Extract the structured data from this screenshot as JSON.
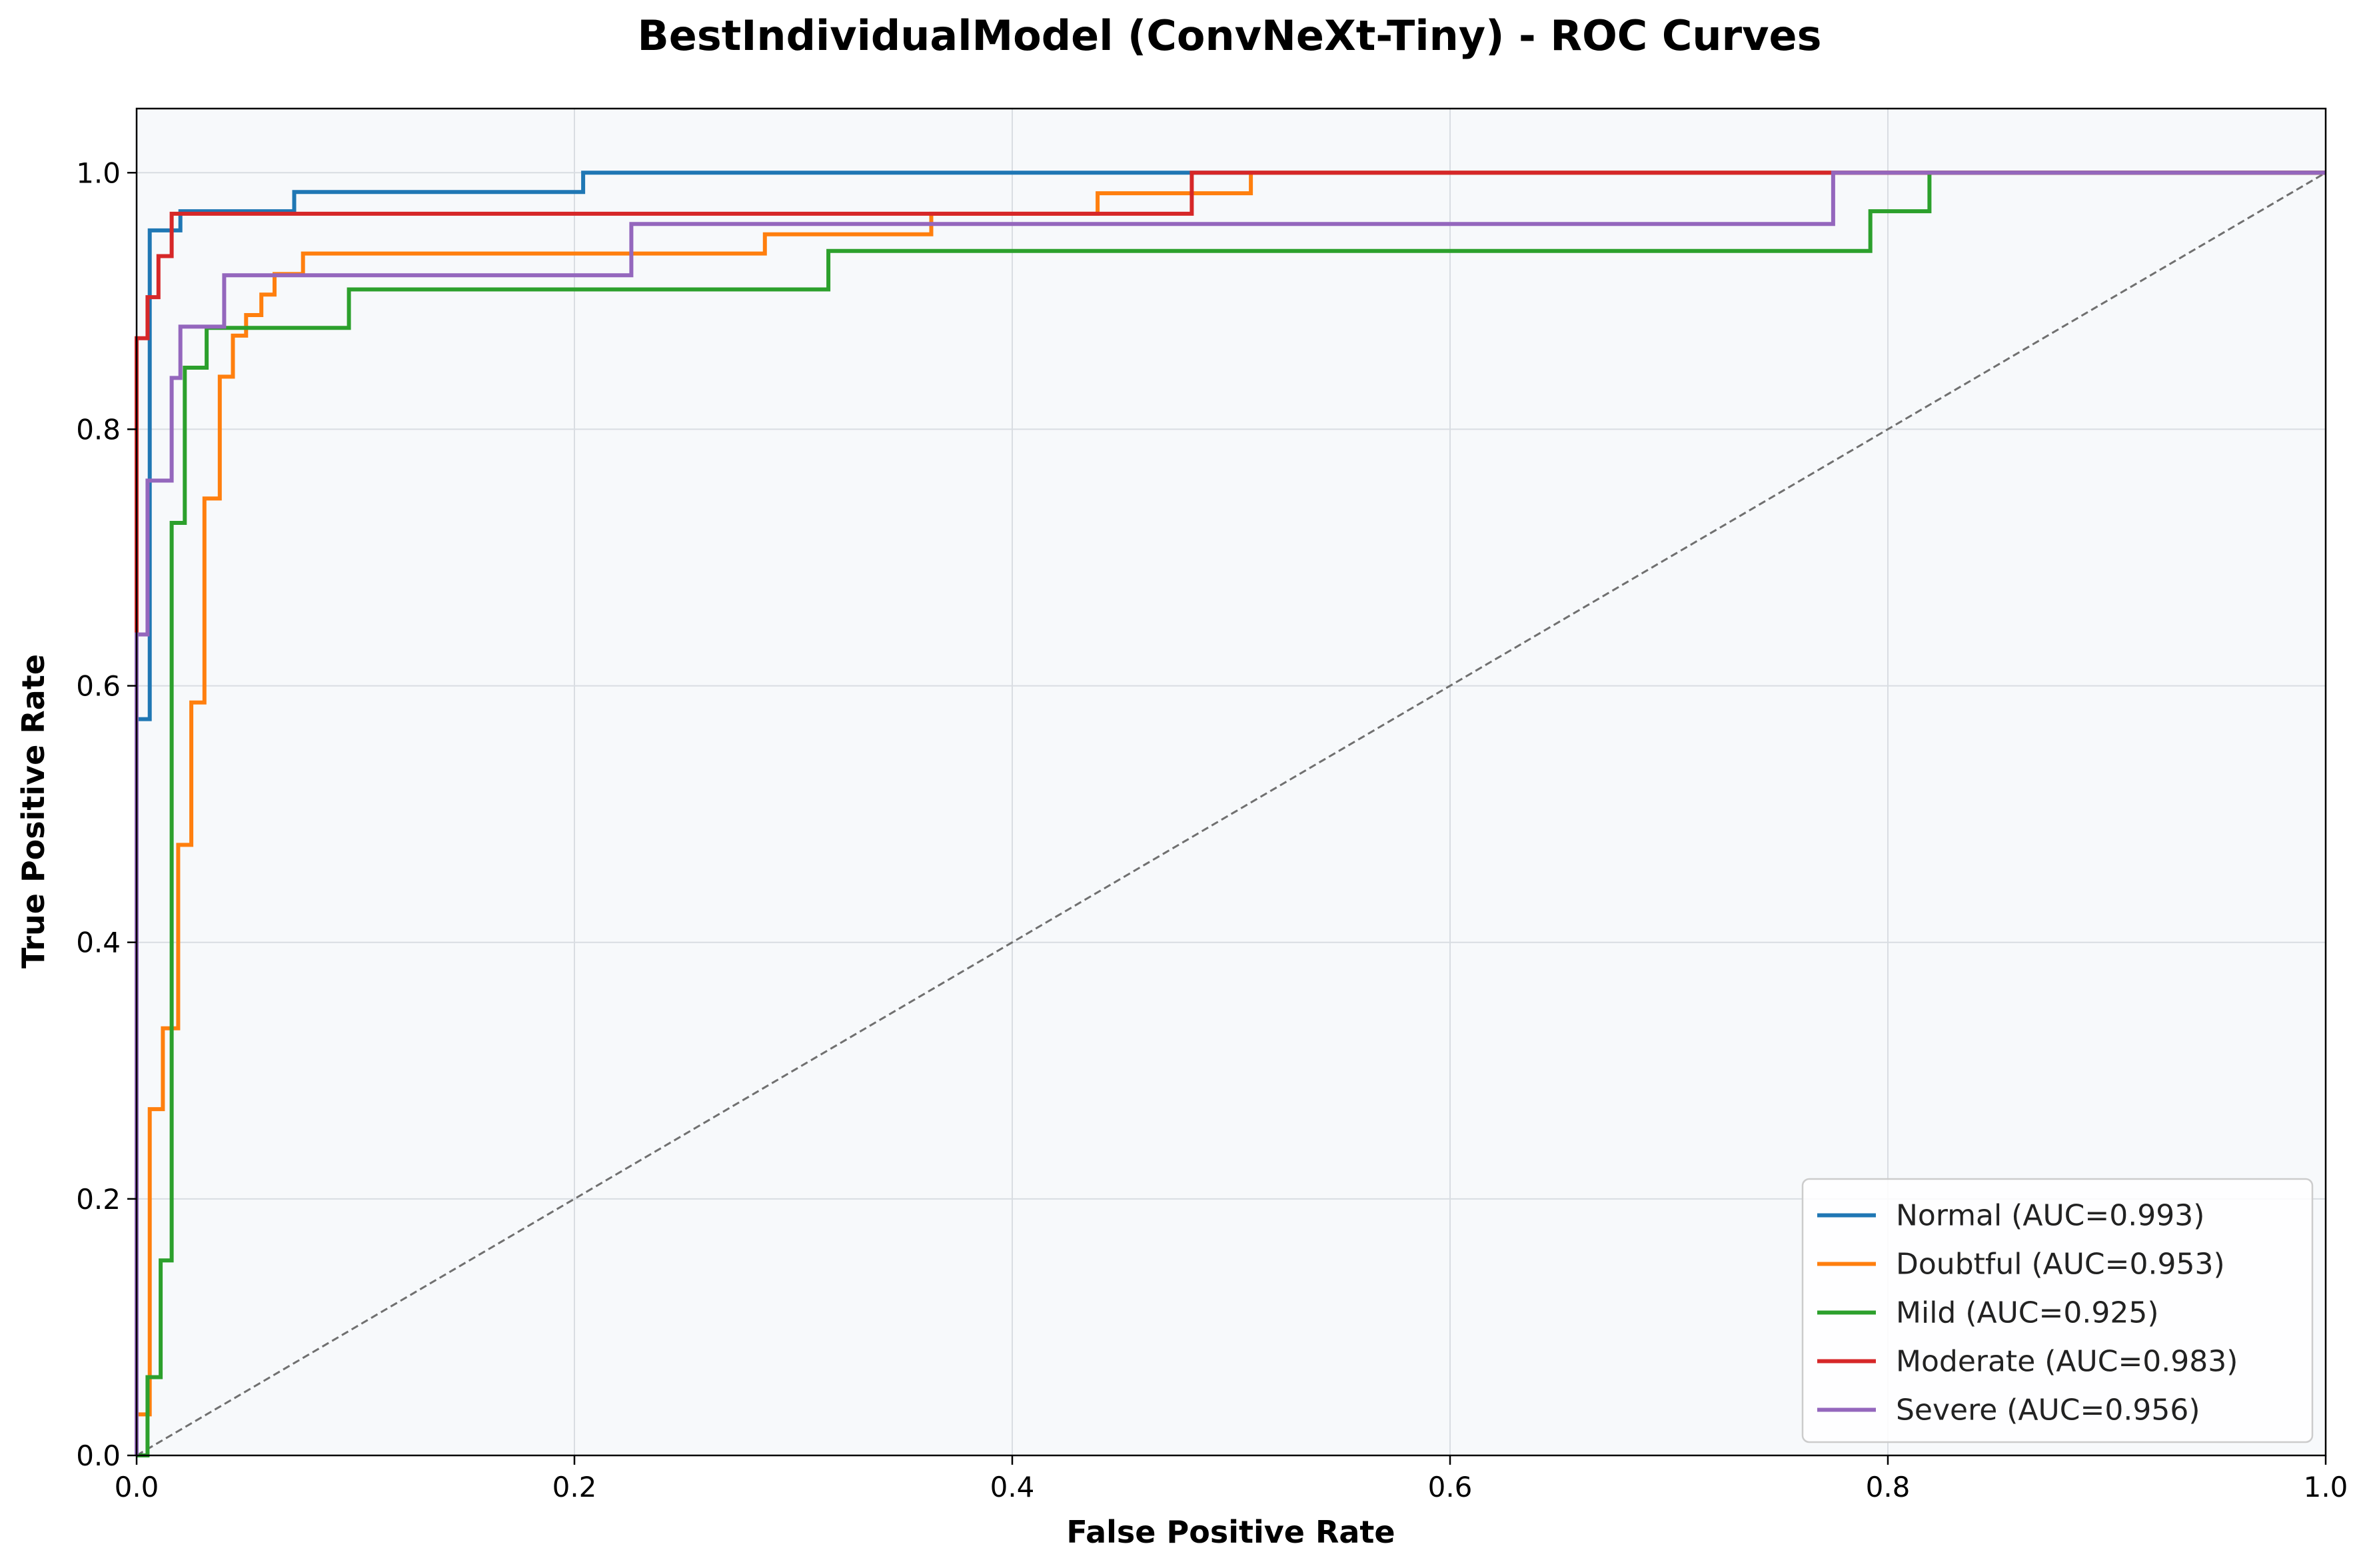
{
  "chart_data": {
    "type": "line",
    "title": "BestIndividualModel (ConvNeXt-Tiny) - ROC Curves",
    "xlabel": "False Positive Rate",
    "ylabel": "True Positive Rate",
    "xlim": [
      0,
      1
    ],
    "ylim": [
      0,
      1.05
    ],
    "xticks": [
      "0.0",
      "0.2",
      "0.4",
      "0.6",
      "0.8",
      "1.0"
    ],
    "yticks": [
      "0.0",
      "0.2",
      "0.4",
      "0.6",
      "0.8",
      "1.0"
    ],
    "grid": true,
    "legend_position": "bottom-right",
    "background_color": "#f7f9fb",
    "diagonal_color": "#707070",
    "series": [
      {
        "name": "Normal (AUC=0.993)",
        "color": "#1f77b4",
        "points": [
          [
            0,
            0
          ],
          [
            0,
            0.574
          ],
          [
            0.006,
            0.574
          ],
          [
            0.006,
            0.955
          ],
          [
            0.02,
            0.955
          ],
          [
            0.02,
            0.97
          ],
          [
            0.072,
            0.97
          ],
          [
            0.072,
            0.985
          ],
          [
            0.204,
            0.985
          ],
          [
            0.204,
            1.0
          ],
          [
            1.0,
            1.0
          ]
        ]
      },
      {
        "name": "Doubtful (AUC=0.953)",
        "color": "#ff7f0e",
        "points": [
          [
            0,
            0
          ],
          [
            0,
            0.032
          ],
          [
            0.006,
            0.032
          ],
          [
            0.006,
            0.27
          ],
          [
            0.012,
            0.27
          ],
          [
            0.012,
            0.333
          ],
          [
            0.019,
            0.333
          ],
          [
            0.019,
            0.476
          ],
          [
            0.025,
            0.476
          ],
          [
            0.025,
            0.587
          ],
          [
            0.031,
            0.587
          ],
          [
            0.031,
            0.746
          ],
          [
            0.038,
            0.746
          ],
          [
            0.038,
            0.841
          ],
          [
            0.044,
            0.841
          ],
          [
            0.044,
            0.873
          ],
          [
            0.05,
            0.873
          ],
          [
            0.05,
            0.889
          ],
          [
            0.057,
            0.889
          ],
          [
            0.057,
            0.905
          ],
          [
            0.063,
            0.905
          ],
          [
            0.063,
            0.921
          ],
          [
            0.076,
            0.921
          ],
          [
            0.076,
            0.937
          ],
          [
            0.287,
            0.937
          ],
          [
            0.287,
            0.952
          ],
          [
            0.363,
            0.952
          ],
          [
            0.363,
            0.968
          ],
          [
            0.439,
            0.968
          ],
          [
            0.439,
            0.984
          ],
          [
            0.509,
            0.984
          ],
          [
            0.509,
            1.0
          ],
          [
            1.0,
            1.0
          ]
        ]
      },
      {
        "name": "Mild (AUC=0.925)",
        "color": "#2ca02c",
        "points": [
          [
            0,
            0
          ],
          [
            0.005,
            0
          ],
          [
            0.005,
            0.061
          ],
          [
            0.011,
            0.061
          ],
          [
            0.011,
            0.152
          ],
          [
            0.016,
            0.152
          ],
          [
            0.016,
            0.727
          ],
          [
            0.022,
            0.727
          ],
          [
            0.022,
            0.848
          ],
          [
            0.032,
            0.848
          ],
          [
            0.032,
            0.879
          ],
          [
            0.097,
            0.879
          ],
          [
            0.097,
            0.909
          ],
          [
            0.316,
            0.909
          ],
          [
            0.316,
            0.939
          ],
          [
            0.792,
            0.939
          ],
          [
            0.792,
            0.97
          ],
          [
            0.819,
            0.97
          ],
          [
            0.819,
            1.0
          ],
          [
            1.0,
            1.0
          ]
        ]
      },
      {
        "name": "Moderate (AUC=0.983)",
        "color": "#d62728",
        "points": [
          [
            0,
            0
          ],
          [
            0,
            0.871
          ],
          [
            0.005,
            0.871
          ],
          [
            0.005,
            0.903
          ],
          [
            0.01,
            0.903
          ],
          [
            0.01,
            0.935
          ],
          [
            0.016,
            0.935
          ],
          [
            0.016,
            0.968
          ],
          [
            0.482,
            0.968
          ],
          [
            0.482,
            1.0
          ],
          [
            1.0,
            1.0
          ]
        ]
      },
      {
        "name": "Severe (AUC=0.956)",
        "color": "#9467bd",
        "points": [
          [
            0,
            0
          ],
          [
            0,
            0.64
          ],
          [
            0.005,
            0.64
          ],
          [
            0.005,
            0.76
          ],
          [
            0.016,
            0.76
          ],
          [
            0.016,
            0.84
          ],
          [
            0.02,
            0.84
          ],
          [
            0.02,
            0.88
          ],
          [
            0.04,
            0.88
          ],
          [
            0.04,
            0.92
          ],
          [
            0.226,
            0.92
          ],
          [
            0.226,
            0.96
          ],
          [
            0.775,
            0.96
          ],
          [
            0.775,
            1.0
          ],
          [
            1.0,
            1.0
          ]
        ]
      }
    ]
  }
}
